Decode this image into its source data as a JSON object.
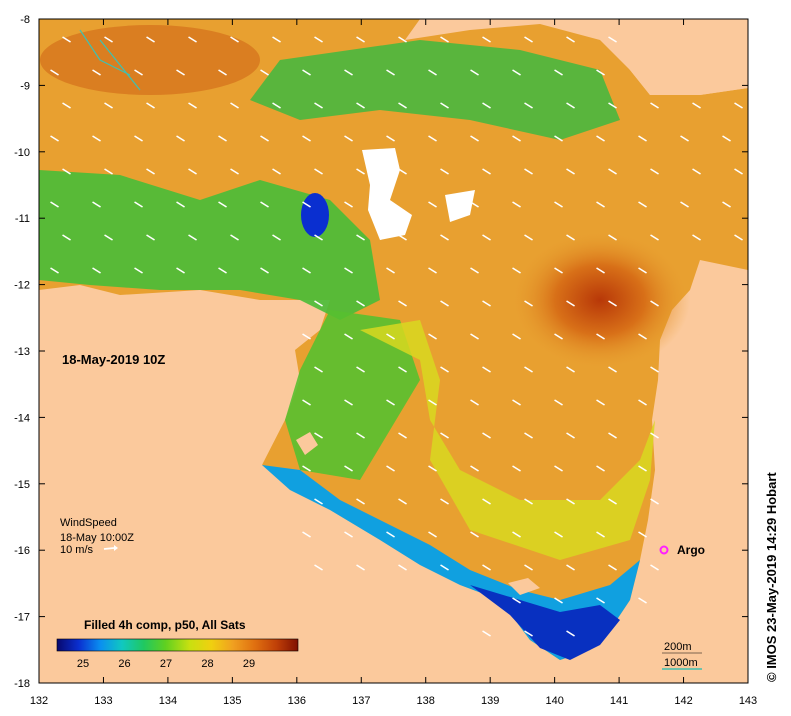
{
  "map": {
    "date_label": "18-May-2019 10Z",
    "x_ticks": [
      "132",
      "133",
      "134",
      "135",
      "136",
      "137",
      "138",
      "139",
      "140",
      "141",
      "142",
      "143"
    ],
    "y_ticks": [
      "-8",
      "-9",
      "-10",
      "-11",
      "-12",
      "-13",
      "-14",
      "-15",
      "-16",
      "-17",
      "-18"
    ],
    "wind": {
      "title": "WindSpeed",
      "time": "18-May 10:00Z",
      "scale": "10 m/s"
    },
    "argo_label": "Argo",
    "colorbar": {
      "title": "Filled 4h comp, p50, All Sats",
      "ticks": [
        "25",
        "26",
        "27",
        "28",
        "29"
      ],
      "colors": [
        "#08086e",
        "#0a2fd0",
        "#0a8ff0",
        "#10c8c0",
        "#20c860",
        "#60d020",
        "#c8e010",
        "#f0d010",
        "#f0a020",
        "#e07010",
        "#c04008",
        "#801000"
      ]
    },
    "contours": {
      "c200": "200m",
      "c1000": "1000m"
    },
    "credit": "© IMOS 23-May-2019 14:29 Hobart",
    "colors": {
      "land": "#fbc99c",
      "sea_warm": "#e8a030",
      "sea_hot": "#c05010",
      "sea_mid": "#d8d820",
      "sea_green": "#40b840",
      "sea_cool": "#10a0e0",
      "sea_cold": "#0830c0",
      "argo": "#ff20ff",
      "contour_1000": "#40c0b0"
    }
  }
}
